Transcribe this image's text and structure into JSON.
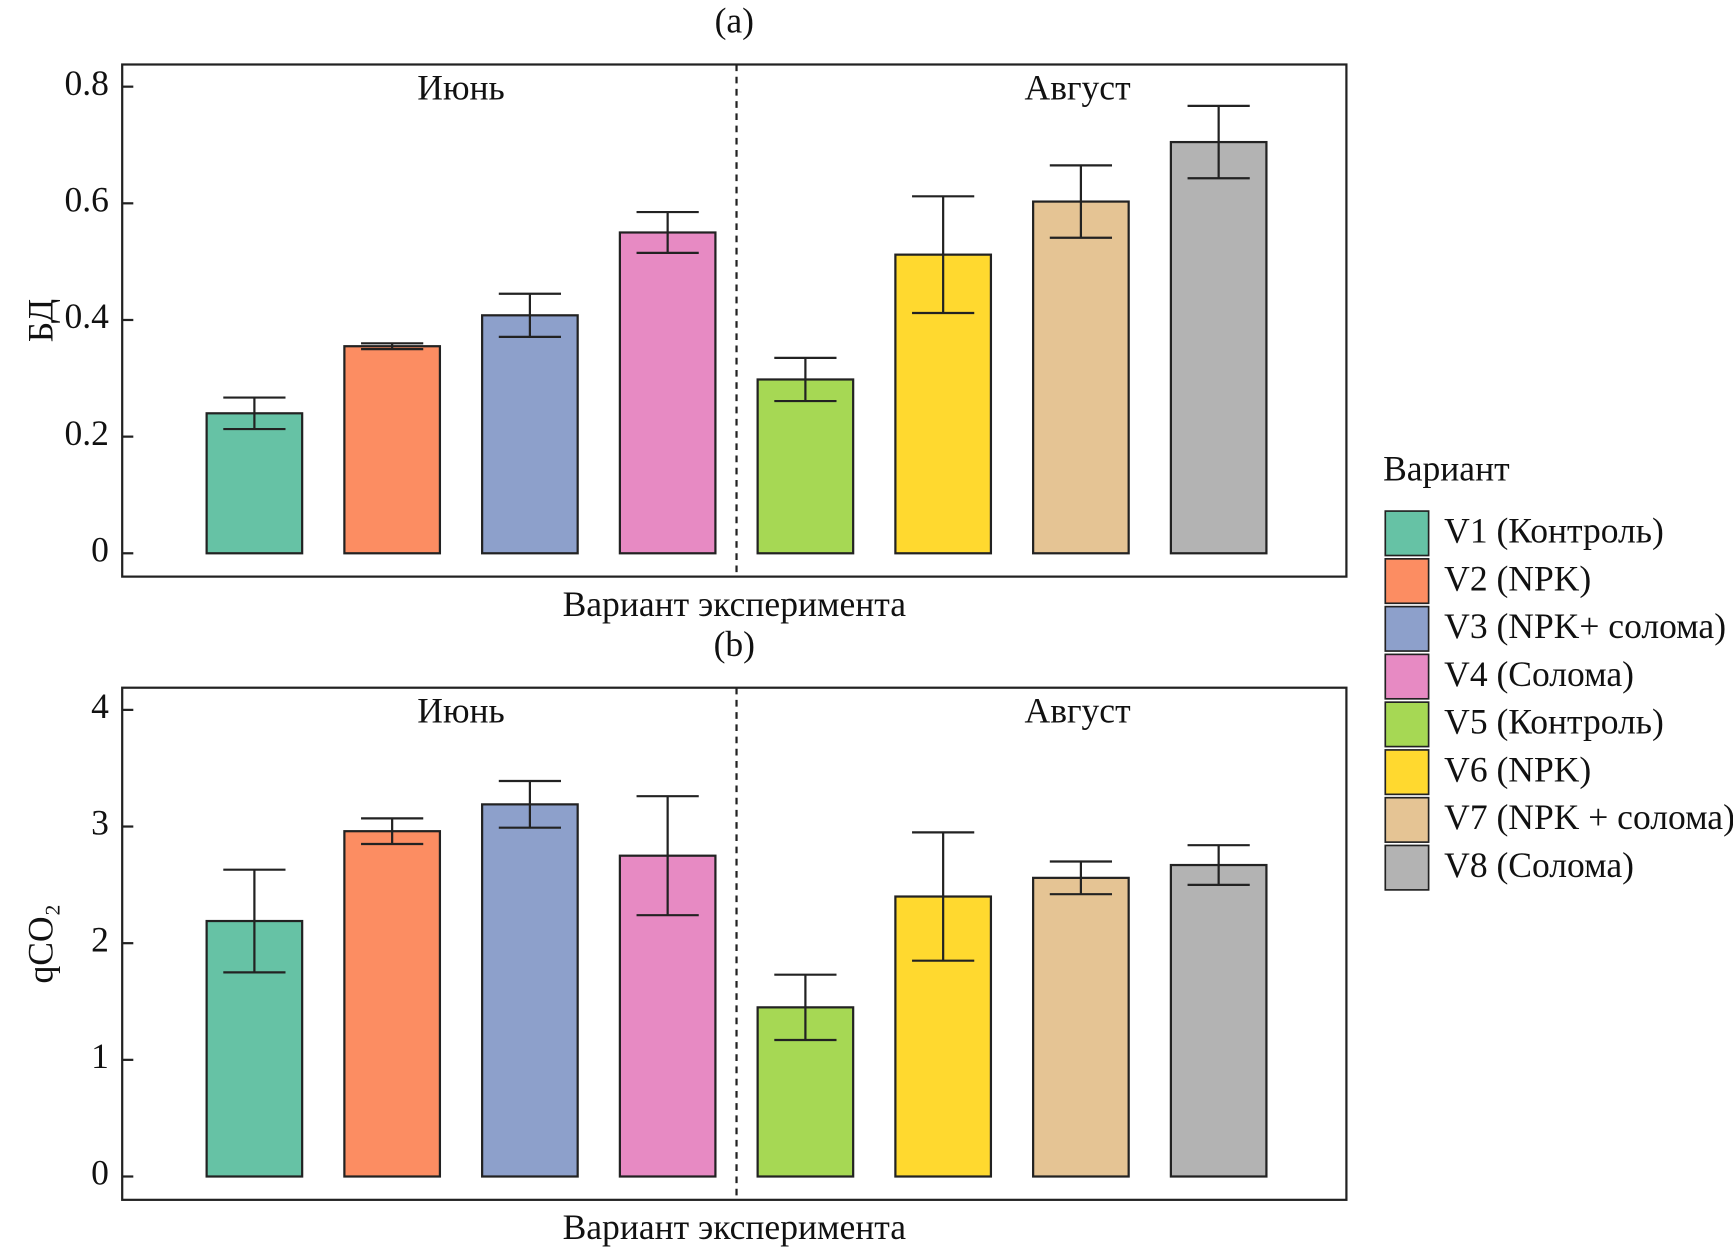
{
  "chart_data": [
    {
      "type": "bar",
      "title": "(a)",
      "ylabel": "БД",
      "xlabel": "Вариант эксперимента",
      "annotations": [
        "Июнь",
        "Август"
      ],
      "values": [
        0.24,
        0.355,
        0.408,
        0.55,
        0.298,
        0.512,
        0.603,
        0.705
      ],
      "errors": [
        0.027,
        0.005,
        0.037,
        0.035,
        0.037,
        0.1,
        0.062,
        0.062
      ],
      "ylim": [
        -0.04,
        0.838
      ],
      "yticks": [
        {
          "value": 0,
          "label": "0"
        },
        0.2,
        0.4,
        0.6,
        0.8
      ]
    },
    {
      "type": "bar",
      "title": "(b)",
      "ylabel": "qCO₂",
      "xlabel": "Вариант эксперимента",
      "annotations": [
        "Июнь",
        "Август"
      ],
      "values": [
        2.19,
        2.96,
        3.19,
        2.75,
        1.45,
        2.4,
        2.56,
        2.67
      ],
      "errors": [
        0.44,
        0.11,
        0.2,
        0.51,
        0.28,
        0.55,
        0.14,
        0.17
      ],
      "ylim": [
        -0.2,
        4.19
      ],
      "yticks": [
        0,
        1,
        2,
        3,
        4
      ]
    }
  ],
  "legend": {
    "title": "Вариант",
    "entries": [
      "V1 (Контроль)",
      "V2 (NPK)",
      "V3 (NPK+ солома)",
      "V4 (Солома)",
      "V5 (Контроль)",
      "V6 (NPK)",
      "V7 (NPK + солома)",
      "V8 (Солома)"
    ],
    "colors": [
      "#66c2a5",
      "#fc8d62",
      "#8da0cb",
      "#e78ac3",
      "#a6d854",
      "#ffd92f",
      "#e5c494",
      "#b3b3b3"
    ]
  }
}
